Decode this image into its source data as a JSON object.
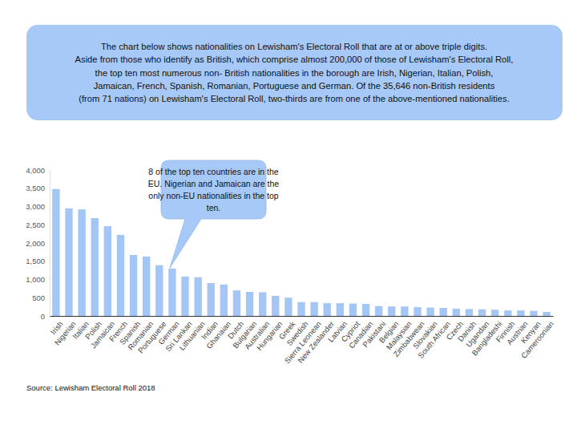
{
  "chart_data": {
    "type": "bar",
    "title": [
      "The chart below shows nationalities on Lewisham's Electoral Roll that are at or above triple digits.",
      "Aside from those who identify as British, which comprise almost 200,000 of those of Lewisham's Electoral Roll,",
      "the top ten most numerous non- British nationalities in the borough are Irish, Nigerian, Italian, Polish,",
      "Jamaican, French, Spanish, Romanian, Portuguese and German. Of the 35,646 non-British residents",
      "(from 71 nations) on Lewisham's Electoral Roll, two-thirds are from one of the above-mentioned nationalities."
    ],
    "annotation": [
      "8 of the top ten countries are in the",
      "EU. Nigerian and Jamaican are the",
      "only non-EU nationalities in the top",
      "ten."
    ],
    "source": "Source: Lewisham Electoral Roll 2018",
    "categories": [
      "Irish",
      "Nigerian",
      "Italian",
      "Polish",
      "Jamaican",
      "French",
      "Spanish",
      "Romanian",
      "Portuguese",
      "German",
      "Sri Lankan",
      "Lithuanian",
      "Indian",
      "Ghanaian",
      "Dutch",
      "Bulgarian",
      "Australian",
      "Hungarian",
      "Greek",
      "Swedish",
      "Sierra Leonean",
      "New Zealander",
      "Latvian",
      "Cypriot",
      "Canadian",
      "Pakistani",
      "Belgian",
      "Malaysian",
      "Zimbabwean",
      "Slovakian",
      "South African",
      "Czech",
      "Danish",
      "Ugandan",
      "Bangladeshi",
      "Finnish",
      "Austrian",
      "Kenyan",
      "Cameroonian"
    ],
    "values": [
      3480,
      2950,
      2920,
      2680,
      2460,
      2220,
      1670,
      1630,
      1390,
      1300,
      1080,
      1060,
      900,
      860,
      700,
      660,
      650,
      550,
      500,
      380,
      380,
      350,
      350,
      340,
      330,
      270,
      260,
      260,
      240,
      230,
      220,
      200,
      190,
      180,
      170,
      150,
      150,
      140,
      110
    ],
    "color": "#a4c6f4",
    "ylim": [
      0,
      4000
    ],
    "yticks": [
      0,
      500,
      {
        "value": 1000,
        "label": "1,000"
      },
      {
        "value": 1500,
        "label": "1,500"
      },
      {
        "value": 2000,
        "label": "2,000"
      },
      {
        "value": 2500,
        "label": "2,500"
      },
      {
        "value": 3000,
        "label": "3,000"
      },
      {
        "value": 3500,
        "label": "3,500"
      },
      {
        "value": 4000,
        "label": "4,000"
      }
    ],
    "grid": false
  }
}
